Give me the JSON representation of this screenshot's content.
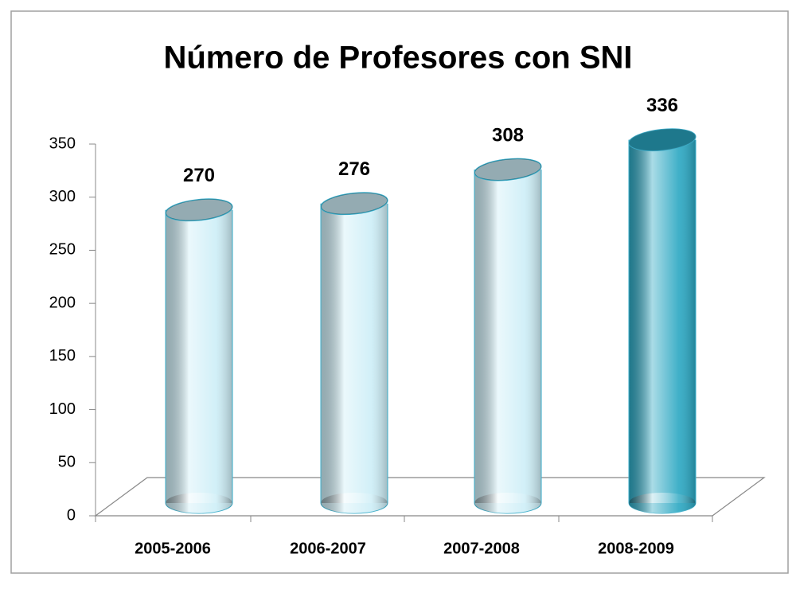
{
  "chart_data": {
    "type": "bar",
    "title": "Número de Profesores con SNI",
    "categories": [
      "2005-2006",
      "2006-2007",
      "2007-2008",
      "2008-2009"
    ],
    "values": [
      270,
      276,
      308,
      336
    ],
    "colors": [
      "#cdeef7",
      "#cdeef7",
      "#cdeef7",
      "#2aa7c2"
    ],
    "ylim": [
      0,
      350
    ],
    "yticks": [
      0,
      50,
      100,
      150,
      200,
      250,
      300,
      350
    ]
  }
}
